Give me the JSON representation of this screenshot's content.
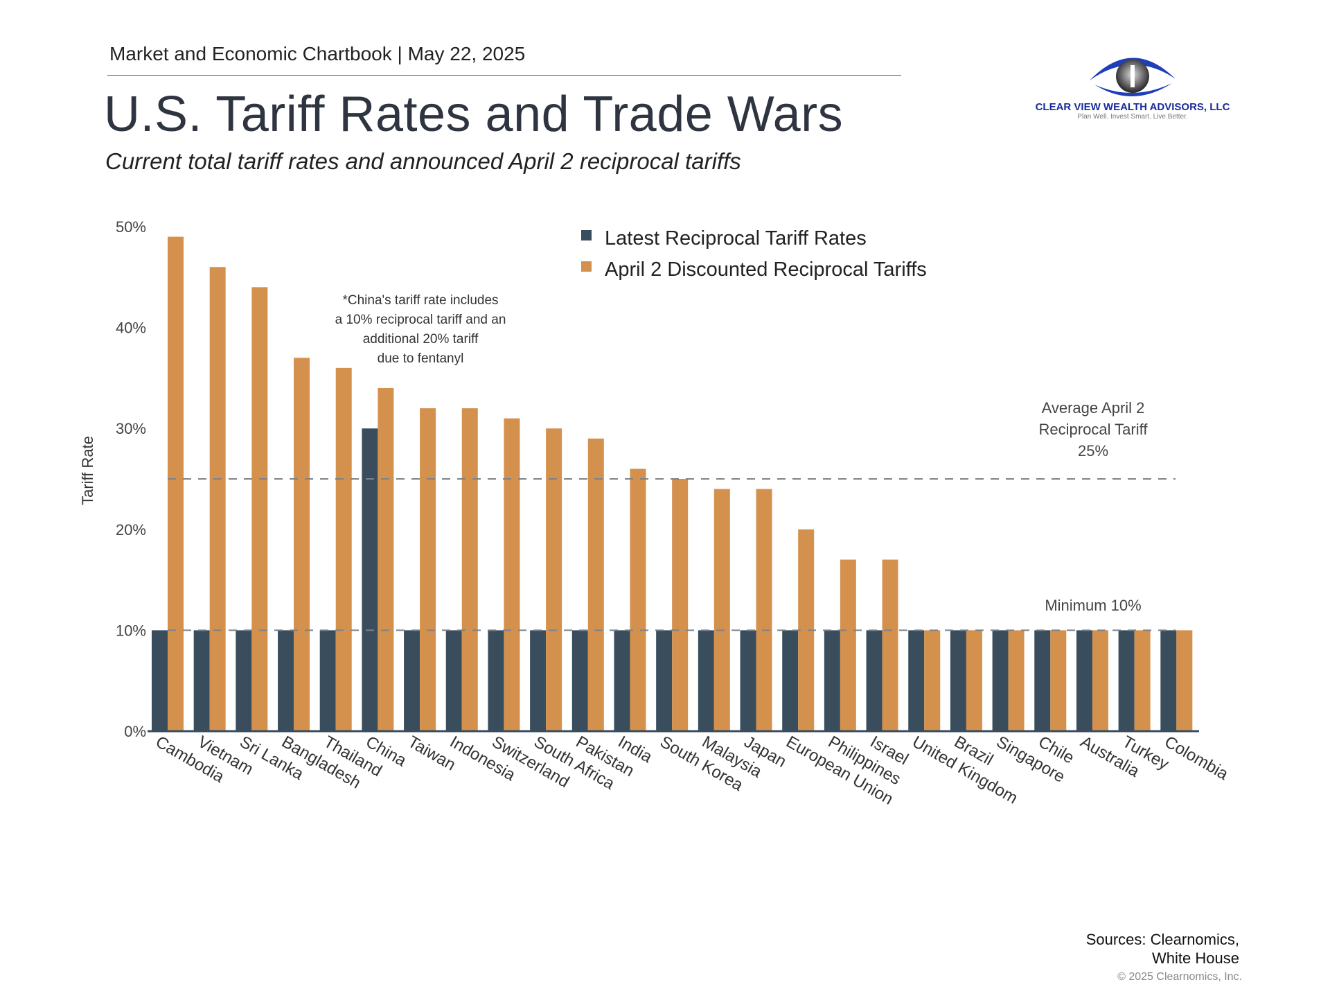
{
  "header": {
    "chartbook": "Market and Economic Chartbook | May 22, 2025",
    "title": "U.S. Tariff Rates and Trade Wars",
    "subtitle": "Current total tariff rates and announced April 2 reciprocal tariffs"
  },
  "logo": {
    "name": "CLEAR VIEW WEALTH ADVISORS, LLC",
    "tagline": "Plan Well. Invest Smart. Live Better.",
    "color": "#1a2a9c"
  },
  "chart_data": {
    "type": "bar",
    "ylabel": "Tariff Rate",
    "ylim": [
      0,
      50
    ],
    "yticks": [
      "0%",
      "10%",
      "20%",
      "30%",
      "40%",
      "50%"
    ],
    "grid": false,
    "legend_position": "top-right",
    "categories": [
      "Cambodia",
      "Vietnam",
      "Sri Lanka",
      "Bangladesh",
      "Thailand",
      "China",
      "Taiwan",
      "Indonesia",
      "Switzerland",
      "South Africa",
      "Pakistan",
      "India",
      "South Korea",
      "Malaysia",
      "Japan",
      "European Union",
      "Philippines",
      "Israel",
      "United Kingdom",
      "Brazil",
      "Singapore",
      "Chile",
      "Australia",
      "Turkey",
      "Colombia"
    ],
    "series": [
      {
        "name": "Latest Reciprocal Tariff Rates",
        "color": "#3a4d5c",
        "values": [
          10,
          10,
          10,
          10,
          10,
          30,
          10,
          10,
          10,
          10,
          10,
          10,
          10,
          10,
          10,
          10,
          10,
          10,
          10,
          10,
          10,
          10,
          10,
          10,
          10
        ]
      },
      {
        "name": "April 2 Discounted Reciprocal Tariffs",
        "color": "#d4914d",
        "values": [
          49,
          46,
          44,
          37,
          36,
          34,
          32,
          32,
          31,
          30,
          29,
          26,
          25,
          24,
          24,
          20,
          17,
          17,
          10,
          10,
          10,
          10,
          10,
          10,
          10
        ]
      }
    ],
    "reference_lines": [
      {
        "value": 25,
        "label_lines": [
          "Average April 2",
          "Reciprocal Tariff",
          "25%"
        ]
      },
      {
        "value": 10,
        "label_lines": [
          "Minimum 10%"
        ]
      }
    ],
    "annotation": [
      "*China's tariff rate includes",
      "a 10% reciprocal tariff and an",
      "additional 20% tariff",
      "due to fentanyl"
    ]
  },
  "footer": {
    "sources": [
      "Sources: Clearnomics,",
      "White House"
    ],
    "copyright": "© 2025 Clearnomics, Inc."
  }
}
